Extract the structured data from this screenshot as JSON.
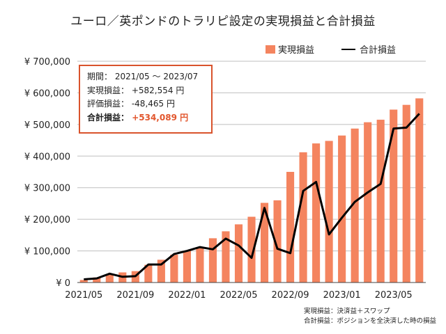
{
  "colors": {
    "bar": "#f4845f",
    "line": "#000000",
    "box_border": "#d9532c",
    "highlight": "#e2562d",
    "grid": "#bfbfbf"
  },
  "info_box": {
    "period_label": "期間：",
    "period_value": "2021/05 ～ 2023/07",
    "realized_label": "実現損益：",
    "realized_value": "+582,554 円",
    "unrealized_label": "評価損益：",
    "unrealized_value": "-48,465 円",
    "total_label": "合計損益：",
    "total_value": "+534,089 円"
  },
  "footnotes": [
    "実現損益：決済益＋スワップ",
    "合計損益：ポジションを全決済した時の損益"
  ],
  "chart_data": {
    "type": "bar",
    "title": "ユーロ／英ポンドのトラリピ設定の実現損益と合計損益",
    "xlabel": "",
    "ylabel": "",
    "categories": [
      "2021/05",
      "2021/06",
      "2021/07",
      "2021/08",
      "2021/09",
      "2021/10",
      "2021/11",
      "2021/12",
      "2022/01",
      "2022/02",
      "2022/03",
      "2022/04",
      "2022/05",
      "2022/06",
      "2022/07",
      "2022/08",
      "2022/09",
      "2022/10",
      "2022/11",
      "2022/12",
      "2023/01",
      "2023/02",
      "2023/03",
      "2023/04",
      "2023/05",
      "2023/06",
      "2023/07"
    ],
    "x_tick_labels": [
      "2021/05",
      "2021/09",
      "2022/01",
      "2022/05",
      "2022/09",
      "2023/01",
      "2023/05"
    ],
    "y_tick_labels": [
      "¥ 0",
      "¥ 100,000",
      "¥ 200,000",
      "¥ 300,000",
      "¥ 400,000",
      "¥ 500,000",
      "¥ 600,000",
      "¥ 700,000"
    ],
    "ylim": [
      0,
      700000
    ],
    "grid": true,
    "legend_position": "top-right",
    "series": [
      {
        "name": "実現損益",
        "type": "bar",
        "values": [
          8000,
          16000,
          26000,
          32000,
          36000,
          56000,
          72000,
          88000,
          100000,
          112000,
          140000,
          162000,
          184000,
          208000,
          252000,
          260000,
          350000,
          412000,
          440000,
          448000,
          465000,
          487000,
          507000,
          515000,
          547000,
          562000,
          582554
        ]
      },
      {
        "name": "合計損益",
        "type": "line",
        "values": [
          10000,
          13000,
          28000,
          18000,
          20000,
          57000,
          57000,
          90000,
          100000,
          112000,
          105000,
          139000,
          117000,
          78000,
          236000,
          107000,
          93000,
          290000,
          318000,
          152000,
          205000,
          255000,
          285000,
          312000,
          487000,
          490000,
          534089
        ]
      }
    ]
  }
}
